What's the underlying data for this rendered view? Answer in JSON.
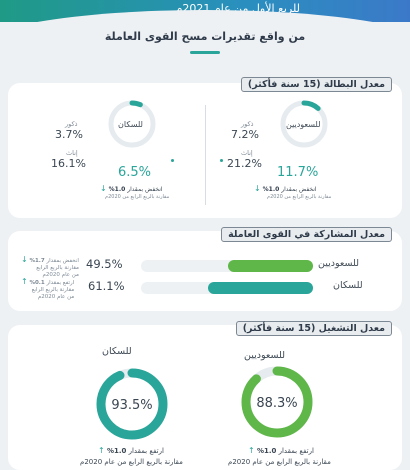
{
  "header": {
    "subtitle": "للربع الأول من عام 2021م",
    "title": "من واقع تقديرات مسح القوى العاملة"
  },
  "colors": {
    "teal": "#2aa59a",
    "green": "#5fb649",
    "track": "#e6ebef"
  },
  "unemployment": {
    "badge": "معدل البطالة (15 سنة فأكثر)",
    "saudis": {
      "label": "للسعوديين",
      "ring_rate": 0.117,
      "male_label": "ذكور",
      "male_value": "7.2%",
      "female_label": "إناث",
      "female_value": "21.2%",
      "total": "11.7%",
      "change_text": "انخفض بمقدار",
      "change_value": "1.0%",
      "compare": "مقارنة بالربع الرابع من 2020م"
    },
    "population": {
      "label": "للسكان",
      "ring_rate": 0.065,
      "male_label": "ذكور",
      "male_value": "3.7%",
      "female_label": "إناث",
      "female_value": "16.1%",
      "total": "6.5%",
      "change_text": "انخفض بمقدار",
      "change_value": "1.0%",
      "compare": "مقارنة بالربع الرابع من 2020م"
    }
  },
  "participation": {
    "badge": "معدل المشاركة في القوى العاملة",
    "rows": [
      {
        "label": "للسعوديين",
        "value": "49.5%",
        "rate": 0.495,
        "note1": "انخفض بمقدار",
        "change": "1.7%",
        "note2": "مقارنة بالربع الرابع",
        "note3": "من عام 2020م",
        "direction": "down"
      },
      {
        "label": "للسكان",
        "value": "61.1%",
        "rate": 0.611,
        "note1": "ارتفع بمقدار",
        "change": "0.1%",
        "note2": "مقارنة بالربع الرابع",
        "note3": "من عام 2020م",
        "direction": "up"
      }
    ]
  },
  "employment": {
    "badge": "معدل التشغيل (15 سنة فأكثر)",
    "saudis": {
      "label": "للسعوديين",
      "value": "88.3%",
      "rate": 0.883,
      "change_text": "ارتفع بمقدار",
      "change_value": "1.0%",
      "compare": "مقارنة بالربع الرابع من عام 2020م"
    },
    "population": {
      "label": "للسكان",
      "value": "93.5%",
      "rate": 0.935,
      "change_text": "ارتفع بمقدار",
      "change_value": "1.0%",
      "compare": "مقارنة بالربع الرابع من عام 2020م"
    }
  }
}
